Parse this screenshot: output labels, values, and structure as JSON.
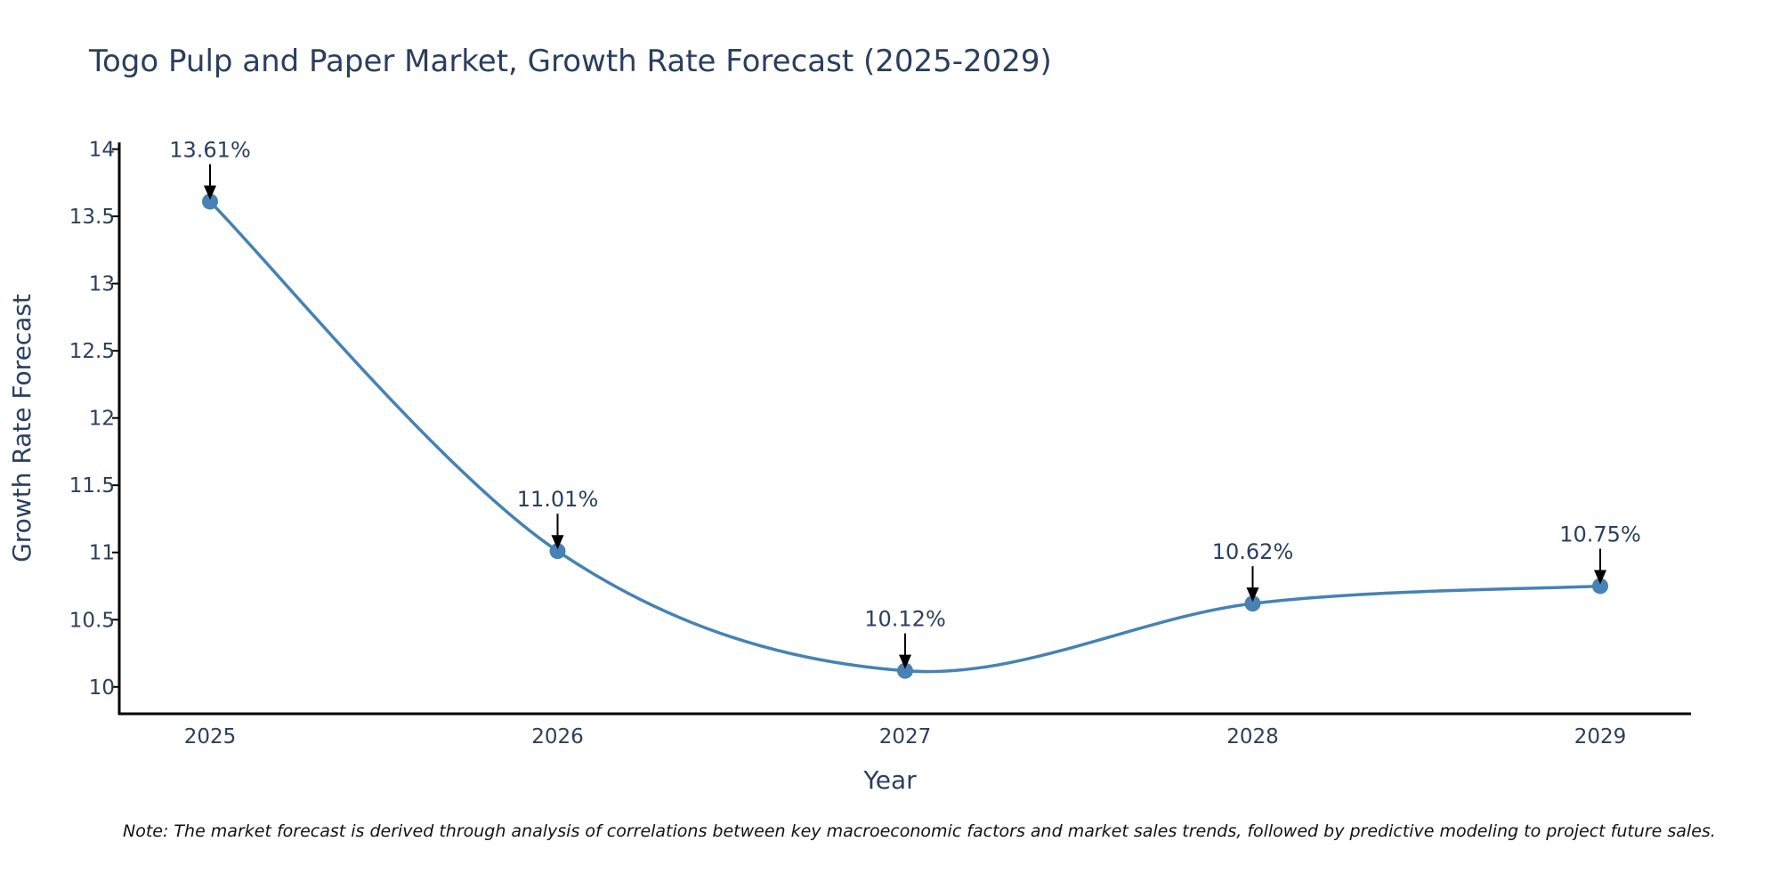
{
  "colors": {
    "line": "#4682b4",
    "marker": "#4682b4",
    "axis": "#000000",
    "text": "#2a3f5f",
    "arrow": "#000000"
  },
  "chart_data": {
    "type": "line",
    "title": "Togo Pulp and Paper Market, Growth Rate Forecast (2025-2029)",
    "xlabel": "Year",
    "ylabel": "Growth Rate Forecast",
    "categories": [
      "2025",
      "2026",
      "2027",
      "2028",
      "2029"
    ],
    "series": [
      {
        "name": "Growth Rate Forecast",
        "values": [
          13.61,
          11.01,
          10.12,
          10.62,
          10.75
        ],
        "labels": [
          "13.61%",
          "11.01%",
          "10.12%",
          "10.62%",
          "10.75%"
        ]
      }
    ],
    "yticks": [
      10,
      10.5,
      11,
      11.5,
      12,
      12.5,
      13,
      13.5,
      14
    ],
    "ytick_labels": [
      "10",
      "10.5",
      "11",
      "11.5",
      "12",
      "12.5",
      "13",
      "13.5",
      "14"
    ],
    "ylim": [
      9.8,
      14.05
    ],
    "grid": false,
    "line_shape": "spline"
  },
  "note": "Note: The market forecast is derived through analysis of correlations between key macroeconomic factors and market sales trends, followed by predictive modeling to project future sales."
}
